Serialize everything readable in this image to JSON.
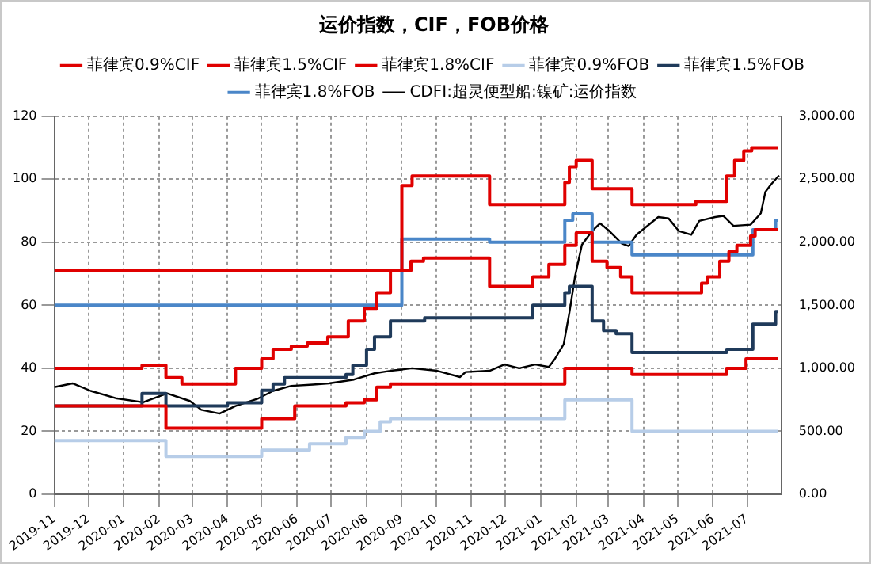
{
  "chart_data": {
    "type": "line",
    "title": "运价指数，CIF，FOB价格",
    "legend": "top",
    "grid": true,
    "marker": "none",
    "xlim": [
      "2019-11-01",
      "2021-07-31"
    ],
    "xticks": [
      "2019-11",
      "2019-12",
      "2020-01",
      "2020-02",
      "2020-03",
      "2020-04",
      "2020-05",
      "2020-06",
      "2020-07",
      "2020-08",
      "2020-09",
      "2020-10",
      "2020-11",
      "2020-12",
      "2021-01",
      "2021-02",
      "2021-03",
      "2021-04",
      "2021-05",
      "2021-06",
      "2021-07"
    ],
    "ylim": [
      0,
      120
    ],
    "yticks": [
      0,
      20,
      40,
      60,
      80,
      100,
      120
    ],
    "y2lim": [
      0,
      3000
    ],
    "y2ticks": [
      {
        "value": 0,
        "label": "0.00"
      },
      {
        "value": 500,
        "label": "500.00"
      },
      {
        "value": 1000,
        "label": "1,000.00"
      },
      {
        "value": 1500,
        "label": "1,500.00"
      },
      {
        "value": 2000,
        "label": "2,000.00"
      },
      {
        "value": 2500,
        "label": "2,500.00"
      },
      {
        "value": 3000,
        "label": "3,000.00"
      }
    ],
    "series": [
      {
        "name": "菲律宾0.9%CIF",
        "type": "step",
        "color": "#e00000",
        "x": [
          "2019-11-01",
          "2020-02-07",
          "2020-05-01",
          "2020-05-30",
          "2020-07-14",
          "2020-07-30",
          "2020-08-10",
          "2020-08-22",
          "2021-01-22",
          "2021-03-22",
          "2021-06-13",
          "2021-06-30",
          "2021-07-28"
        ],
        "values": [
          28,
          21,
          24,
          28,
          29,
          30,
          34,
          35,
          40,
          38,
          40,
          43,
          43
        ]
      },
      {
        "name": "菲律宾1.5%CIF",
        "type": "step",
        "color": "#e00000",
        "x": [
          "2019-11-01",
          "2020-01-17",
          "2020-02-07",
          "2020-02-21",
          "2020-04-08",
          "2020-05-01",
          "2020-05-11",
          "2020-05-27",
          "2020-06-10",
          "2020-06-28",
          "2020-07-16",
          "2020-07-30",
          "2020-08-10",
          "2020-08-22",
          "2020-09-09",
          "2020-09-20",
          "2020-11-17",
          "2020-12-25",
          "2021-01-08",
          "2021-01-22",
          "2021-02-01",
          "2021-02-15",
          "2021-02-28",
          "2021-03-12",
          "2021-03-22",
          "2021-05-22",
          "2021-05-27",
          "2021-06-07",
          "2021-06-15",
          "2021-06-22",
          "2021-07-04",
          "2021-07-08",
          "2021-07-28"
        ],
        "values": [
          40,
          41,
          37,
          35,
          40,
          43,
          46,
          47,
          48,
          50,
          55,
          59,
          64,
          71,
          74,
          75,
          66,
          69,
          73,
          79,
          83,
          74,
          72,
          69,
          64,
          67,
          69,
          74,
          77,
          79,
          82,
          84,
          84
        ]
      },
      {
        "name": "菲律宾1.8%CIF",
        "type": "step",
        "color": "#e00000",
        "x": [
          "2019-11-01",
          "2020-09-01",
          "2020-09-10",
          "2020-11-17",
          "2021-01-22",
          "2021-01-26",
          "2021-02-01",
          "2021-02-15",
          "2021-03-22",
          "2021-05-17",
          "2021-06-13",
          "2021-06-20",
          "2021-06-28",
          "2021-07-05",
          "2021-07-28"
        ],
        "values": [
          71,
          98,
          101,
          92,
          99,
          104,
          106,
          97,
          92,
          93,
          101,
          106,
          109,
          110,
          110
        ]
      },
      {
        "name": "菲律宾0.9%FOB",
        "type": "step",
        "color": "#b7cde8",
        "x": [
          "2019-11-01",
          "2020-02-07",
          "2020-05-01",
          "2020-06-12",
          "2020-07-14",
          "2020-07-30",
          "2020-08-13",
          "2020-08-22",
          "2021-01-22",
          "2021-03-22",
          "2021-07-28"
        ],
        "values": [
          17,
          12,
          14,
          16,
          18,
          20,
          23,
          24,
          30,
          20,
          20
        ]
      },
      {
        "name": "菲律宾1.5%FOB",
        "type": "step",
        "color": "#1f3a5a",
        "x": [
          "2019-11-01",
          "2020-01-17",
          "2020-02-07",
          "2020-04-01",
          "2020-05-01",
          "2020-05-11",
          "2020-05-21",
          "2020-07-14",
          "2020-07-20",
          "2020-08-01",
          "2020-08-08",
          "2020-08-22",
          "2020-09-21",
          "2020-12-25",
          "2021-01-22",
          "2021-01-26",
          "2021-02-15",
          "2021-02-25",
          "2021-03-08",
          "2021-03-22",
          "2021-06-13",
          "2021-07-06",
          "2021-07-26",
          "2021-07-28"
        ],
        "values": [
          28,
          32,
          28,
          29,
          33,
          35,
          37,
          38,
          41,
          46,
          50,
          55,
          56,
          60,
          64,
          66,
          55,
          52,
          51,
          45,
          46,
          54,
          58,
          58
        ]
      },
      {
        "name": "菲律宾1.8%FOB",
        "type": "step",
        "color": "#4a86c8",
        "x": [
          "2019-11-01",
          "2020-09-01",
          "2020-11-17",
          "2021-01-22",
          "2021-01-29",
          "2021-02-15",
          "2021-03-22",
          "2021-07-06",
          "2021-07-26",
          "2021-07-28"
        ],
        "values": [
          60,
          81,
          80,
          87,
          89,
          80,
          76,
          84,
          87,
          87
        ]
      },
      {
        "name": "CDFI:超灵便型船:镍矿:运价指数",
        "color": "#000000",
        "axis": "y2",
        "x": [
          "2019-11-01",
          "2019-11-17",
          "2019-12-03",
          "2019-12-26",
          "2020-01-18",
          "2020-02-08",
          "2020-02-28",
          "2020-03-09",
          "2020-03-25",
          "2020-04-08",
          "2020-04-28",
          "2020-05-11",
          "2020-05-27",
          "2020-06-15",
          "2020-06-29",
          "2020-07-21",
          "2020-08-08",
          "2020-08-22",
          "2020-09-01",
          "2020-09-10",
          "2020-10-02",
          "2020-10-22",
          "2020-10-27",
          "2020-11-17",
          "2020-11-30",
          "2020-12-13",
          "2020-12-27",
          "2021-01-08",
          "2021-01-13",
          "2021-01-21",
          "2021-01-26",
          "2021-01-31",
          "2021-02-06",
          "2021-02-15",
          "2021-02-22",
          "2021-03-02",
          "2021-03-13",
          "2021-03-19",
          "2021-03-26",
          "2021-04-14",
          "2021-04-23",
          "2021-05-02",
          "2021-05-13",
          "2021-05-20",
          "2021-06-03",
          "2021-06-10",
          "2021-06-19",
          "2021-07-04",
          "2021-07-13",
          "2021-07-17",
          "2021-07-22",
          "2021-07-29"
        ],
        "values": [
          850,
          880,
          820,
          760,
          730,
          800,
          740,
          670,
          640,
          700,
          760,
          820,
          860,
          870,
          880,
          910,
          960,
          980,
          990,
          1000,
          980,
          930,
          970,
          980,
          1030,
          1000,
          1030,
          1010,
          1070,
          1190,
          1440,
          1730,
          1980,
          2090,
          2150,
          2090,
          1990,
          1970,
          2060,
          2200,
          2190,
          2090,
          2060,
          2170,
          2200,
          2210,
          2130,
          2140,
          2230,
          2400,
          2460,
          2530
        ]
      }
    ]
  }
}
